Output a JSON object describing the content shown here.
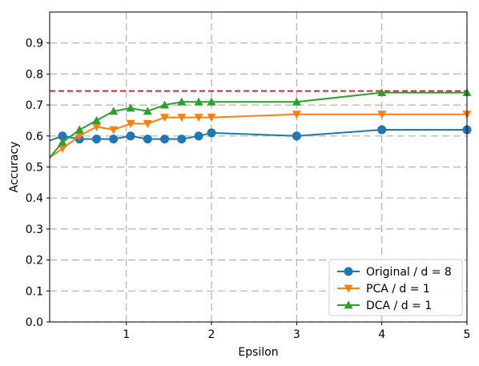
{
  "chart_data": {
    "type": "line",
    "title": "",
    "xlabel": "Epsilon",
    "ylabel": "Accuracy",
    "xlim": [
      0.1,
      5
    ],
    "ylim": [
      0,
      1.0
    ],
    "x_ticks": [
      1,
      2,
      3,
      4,
      5
    ],
    "x_tick_labels": [
      "1",
      "2",
      "3",
      "4",
      "5"
    ],
    "y_ticks": [
      0.0,
      0.1,
      0.2,
      0.3,
      0.4,
      0.5,
      0.6,
      0.7,
      0.8,
      0.9
    ],
    "y_tick_labels": [
      "0.0",
      "0.1",
      "0.2",
      "0.3",
      "0.4",
      "0.5",
      "0.6",
      "0.7",
      "0.8",
      "0.9"
    ],
    "grid": true,
    "legend_position": "lower-right",
    "reference_line": {
      "y": 0.745,
      "color": "#d62728",
      "style": "dashed"
    },
    "series": [
      {
        "name": "Original / d = 8",
        "color": "#1f77b4",
        "marker": "circle",
        "x": [
          0.1,
          0.25,
          0.45,
          0.65,
          0.85,
          1.05,
          1.25,
          1.45,
          1.65,
          1.85,
          2.0,
          3.0,
          4.0,
          5.0
        ],
        "y": [
          0.585,
          0.6,
          0.59,
          0.59,
          0.59,
          0.6,
          0.59,
          0.59,
          0.59,
          0.6,
          0.61,
          0.6,
          0.62,
          0.62
        ]
      },
      {
        "name": "PCA / d = 1",
        "color": "#ff7f0e",
        "marker": "triangle-down",
        "x": [
          0.1,
          0.25,
          0.45,
          0.65,
          0.85,
          1.05,
          1.25,
          1.45,
          1.65,
          1.85,
          2.0,
          3.0,
          4.0,
          5.0
        ],
        "y": [
          0.53,
          0.56,
          0.6,
          0.63,
          0.62,
          0.64,
          0.64,
          0.66,
          0.66,
          0.66,
          0.66,
          0.67,
          0.67,
          0.67
        ]
      },
      {
        "name": "DCA / d = 1",
        "color": "#2ca02c",
        "marker": "triangle-up",
        "x": [
          0.1,
          0.25,
          0.45,
          0.65,
          0.85,
          1.05,
          1.25,
          1.45,
          1.65,
          1.85,
          2.0,
          3.0,
          4.0,
          5.0
        ],
        "y": [
          0.53,
          0.58,
          0.62,
          0.65,
          0.68,
          0.69,
          0.68,
          0.7,
          0.71,
          0.71,
          0.71,
          0.71,
          0.74,
          0.74
        ]
      }
    ]
  }
}
